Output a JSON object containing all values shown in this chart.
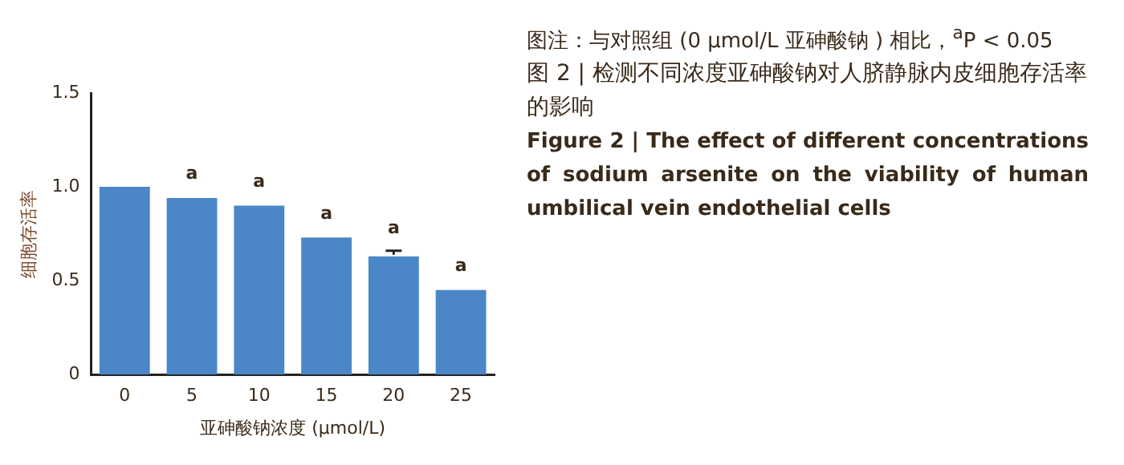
{
  "chart_data": {
    "type": "bar",
    "title": "图 2 | 检测不同浓度亚砷酸钠对人脐静脉内皮细胞存活率的影响",
    "subtitle": "Figure 2 | The effect of different concentrations of sodium arsenite on the viability of human umbilical vein endothelial cells",
    "xlabel": "亚砷酸钠浓度 (μmol/L)",
    "ylabel": "细胞存活率",
    "categories": [
      "0",
      "5",
      "10",
      "15",
      "20",
      "25"
    ],
    "values": [
      1.0,
      0.94,
      0.9,
      0.73,
      0.63,
      0.45
    ],
    "errors": [
      null,
      null,
      null,
      null,
      0.03,
      null
    ],
    "color": "#4a86c8",
    "ylim": [
      0,
      1.5
    ],
    "yticks": [
      0,
      0.5,
      {
        "value": 1.0,
        "label": "1.0"
      },
      1.5
    ],
    "grid": false,
    "legend": false,
    "annotations": [
      "图注：与对照组 (0 μmol/L 亚砷酸钠 ) 相比，$^{a}$P < 0.05",
      {
        "text": "a",
        "x": "5",
        "y": 0.95
      },
      {
        "text": "a",
        "x": "10",
        "y": 0.91
      },
      {
        "text": "a",
        "x": "15",
        "y": 0.74
      },
      {
        "text": "a",
        "x": "20",
        "y": 0.66
      },
      {
        "text": "a",
        "x": "25",
        "y": 0.46
      }
    ]
  }
}
